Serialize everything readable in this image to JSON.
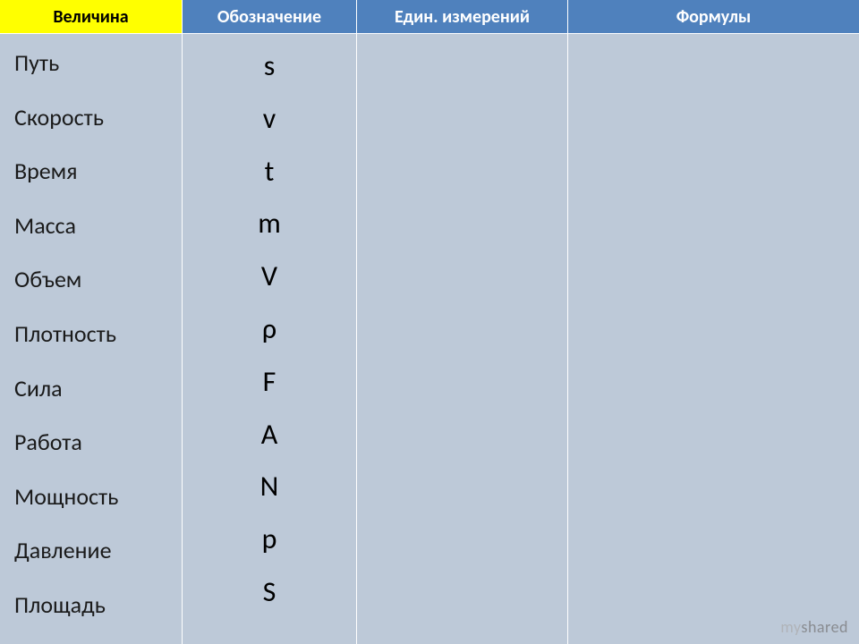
{
  "headers": {
    "col1": "Величина",
    "col2": "Обозначение",
    "col3": "Един. измерений",
    "col4": "Формулы"
  },
  "columns": {
    "widths": [
      204,
      195,
      236,
      325
    ],
    "header_bg": [
      "#ffff00",
      "#4f81bd",
      "#4f81bd",
      "#4f81bd"
    ],
    "header_fg": [
      "#000000",
      "#ffffff",
      "#ffffff",
      "#ffffff"
    ]
  },
  "quantities": [
    "Путь",
    "Скорость",
    "Время",
    "Масса",
    "Объем",
    "Плотность",
    "Сила",
    "Работа",
    "Мощность",
    "Давление",
    "Площадь"
  ],
  "symbols": [
    "s",
    "v",
    "t",
    "m",
    "V",
    "ρ",
    "F",
    "A",
    "N",
    "p",
    "S"
  ],
  "watermark": {
    "part1": "my",
    "part2": "shared"
  },
  "styling": {
    "body_bg": "#bdc9d8",
    "border_color": "#ffffff",
    "quantity_fontsize": 26,
    "symbol_fontsize": 32,
    "header_fontsize": 20,
    "quantity_color": "#1a1a1a",
    "symbol_color": "#000000"
  }
}
